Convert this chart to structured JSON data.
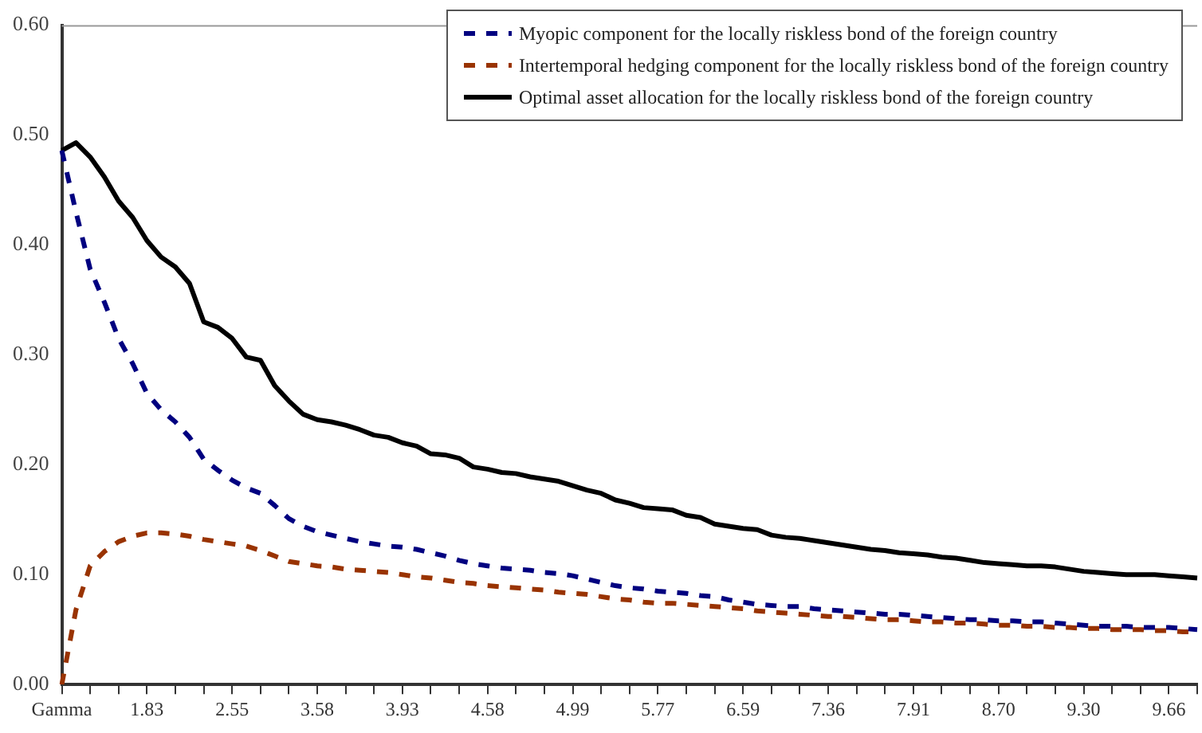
{
  "chart_data": {
    "type": "line",
    "categories": [
      "Gamma",
      null,
      null,
      null,
      null,
      null,
      "1.83",
      null,
      null,
      null,
      null,
      null,
      "2.55",
      null,
      null,
      null,
      null,
      null,
      "3.58",
      null,
      null,
      null,
      null,
      null,
      "3.93",
      null,
      null,
      null,
      null,
      null,
      "4.58",
      null,
      null,
      null,
      null,
      null,
      "4.99",
      null,
      null,
      null,
      null,
      null,
      "5.77",
      null,
      null,
      null,
      null,
      null,
      "6.59",
      null,
      null,
      null,
      null,
      null,
      "7.36",
      null,
      null,
      null,
      null,
      null,
      "7.91",
      null,
      null,
      null,
      null,
      null,
      "8.70",
      null,
      null,
      null,
      null,
      null,
      "9.30",
      null,
      null,
      null,
      null,
      null,
      "9.66",
      null,
      null
    ],
    "series": [
      {
        "name": "Myopic component for the locally riskless bond of the foreign country",
        "color": "#000080",
        "line_style": "dashed",
        "values": [
          0.486,
          0.43,
          0.378,
          0.348,
          0.315,
          0.292,
          0.265,
          0.25,
          0.239,
          0.225,
          0.205,
          0.195,
          0.186,
          0.179,
          0.174,
          0.163,
          0.151,
          0.144,
          0.139,
          0.136,
          0.133,
          0.13,
          0.128,
          0.126,
          0.125,
          0.123,
          0.12,
          0.117,
          0.113,
          0.11,
          0.108,
          0.106,
          0.105,
          0.104,
          0.102,
          0.101,
          0.099,
          0.096,
          0.093,
          0.09,
          0.088,
          0.087,
          0.085,
          0.084,
          0.083,
          0.081,
          0.08,
          0.077,
          0.075,
          0.073,
          0.072,
          0.071,
          0.071,
          0.069,
          0.068,
          0.067,
          0.066,
          0.065,
          0.064,
          0.064,
          0.063,
          0.062,
          0.061,
          0.06,
          0.059,
          0.059,
          0.058,
          0.058,
          0.057,
          0.057,
          0.056,
          0.055,
          0.054,
          0.053,
          0.053,
          0.053,
          0.052,
          0.052,
          0.052,
          0.051,
          0.05
        ]
      },
      {
        "name": "Intertemporal hedging component for the locally riskless bond of the foreign country",
        "color": "#993300",
        "line_style": "dashed",
        "values": [
          0.0,
          0.068,
          0.108,
          0.121,
          0.13,
          0.135,
          0.138,
          0.138,
          0.137,
          0.135,
          0.132,
          0.13,
          0.128,
          0.126,
          0.122,
          0.117,
          0.112,
          0.11,
          0.108,
          0.107,
          0.105,
          0.104,
          0.103,
          0.102,
          0.1,
          0.098,
          0.097,
          0.095,
          0.093,
          0.092,
          0.09,
          0.089,
          0.088,
          0.087,
          0.086,
          0.084,
          0.083,
          0.082,
          0.08,
          0.078,
          0.077,
          0.075,
          0.074,
          0.074,
          0.073,
          0.072,
          0.071,
          0.07,
          0.069,
          0.067,
          0.066,
          0.065,
          0.064,
          0.063,
          0.062,
          0.062,
          0.061,
          0.06,
          0.059,
          0.059,
          0.058,
          0.057,
          0.057,
          0.056,
          0.056,
          0.055,
          0.054,
          0.054,
          0.053,
          0.053,
          0.052,
          0.052,
          0.051,
          0.051,
          0.05,
          0.05,
          0.05,
          0.049,
          0.049,
          0.048,
          0.048
        ]
      },
      {
        "name": "Optimal asset allocation for the locally riskless bond of the foreign country",
        "color": "#000000",
        "line_style": "solid",
        "values": [
          0.486,
          0.493,
          0.48,
          0.462,
          0.44,
          0.425,
          0.404,
          0.389,
          0.38,
          0.365,
          0.33,
          0.325,
          0.315,
          0.298,
          0.295,
          0.272,
          0.258,
          0.246,
          0.241,
          0.239,
          0.236,
          0.232,
          0.227,
          0.225,
          0.22,
          0.217,
          0.21,
          0.209,
          0.206,
          0.198,
          0.196,
          0.193,
          0.192,
          0.189,
          0.187,
          0.185,
          0.181,
          0.177,
          0.174,
          0.168,
          0.165,
          0.161,
          0.16,
          0.159,
          0.154,
          0.152,
          0.146,
          0.144,
          0.142,
          0.141,
          0.136,
          0.134,
          0.133,
          0.131,
          0.129,
          0.127,
          0.125,
          0.123,
          0.122,
          0.12,
          0.119,
          0.118,
          0.116,
          0.115,
          0.113,
          0.111,
          0.11,
          0.109,
          0.108,
          0.108,
          0.107,
          0.105,
          0.103,
          0.102,
          0.101,
          0.1,
          0.1,
          0.1,
          0.099,
          0.098,
          0.097
        ]
      }
    ],
    "ylim": [
      0,
      0.6
    ],
    "yticks": [
      {
        "value": 0,
        "label": "0.00"
      },
      {
        "value": 0.1,
        "label": "0.10"
      },
      {
        "value": 0.2,
        "label": "0.20"
      },
      {
        "value": 0.3,
        "label": "0.30"
      },
      {
        "value": 0.4,
        "label": "0.40"
      },
      {
        "value": 0.5,
        "label": "0.50"
      },
      {
        "value": 0.6,
        "label": "0.60"
      }
    ],
    "grid": false,
    "legend": "top right",
    "marker": "none"
  }
}
